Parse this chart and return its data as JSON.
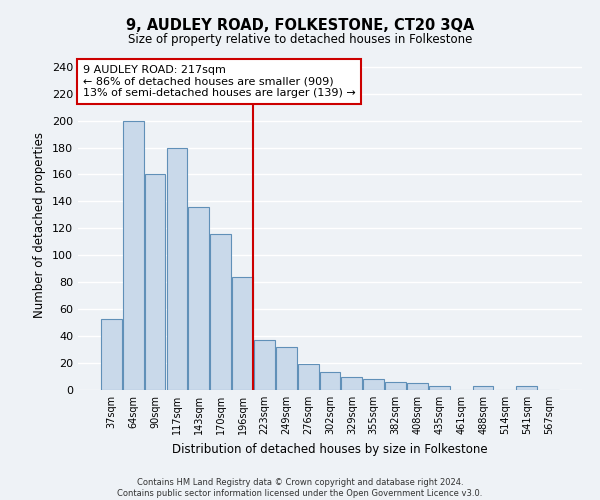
{
  "title": "9, AUDLEY ROAD, FOLKESTONE, CT20 3QA",
  "subtitle": "Size of property relative to detached houses in Folkestone",
  "xlabel": "Distribution of detached houses by size in Folkestone",
  "ylabel": "Number of detached properties",
  "bar_labels": [
    "37sqm",
    "64sqm",
    "90sqm",
    "117sqm",
    "143sqm",
    "170sqm",
    "196sqm",
    "223sqm",
    "249sqm",
    "276sqm",
    "302sqm",
    "329sqm",
    "355sqm",
    "382sqm",
    "408sqm",
    "435sqm",
    "461sqm",
    "488sqm",
    "514sqm",
    "541sqm",
    "567sqm"
  ],
  "bar_values": [
    53,
    200,
    160,
    180,
    136,
    116,
    84,
    37,
    32,
    19,
    13,
    10,
    8,
    6,
    5,
    3,
    0,
    3,
    0,
    3,
    0
  ],
  "bar_color": "#c9d9ea",
  "bar_edge_color": "#6090b8",
  "background_color": "#eef2f6",
  "grid_color": "#ffffff",
  "annotation_line1": "9 AUDLEY ROAD: 217sqm",
  "annotation_line2": "← 86% of detached houses are smaller (909)",
  "annotation_line3": "13% of semi-detached houses are larger (139) →",
  "annotation_box_facecolor": "#ffffff",
  "annotation_box_edgecolor": "#cc0000",
  "vline_color": "#cc0000",
  "ylim": [
    0,
    245
  ],
  "yticks": [
    0,
    20,
    40,
    60,
    80,
    100,
    120,
    140,
    160,
    180,
    200,
    220,
    240
  ],
  "footer_line1": "Contains HM Land Registry data © Crown copyright and database right 2024.",
  "footer_line2": "Contains public sector information licensed under the Open Government Licence v3.0."
}
